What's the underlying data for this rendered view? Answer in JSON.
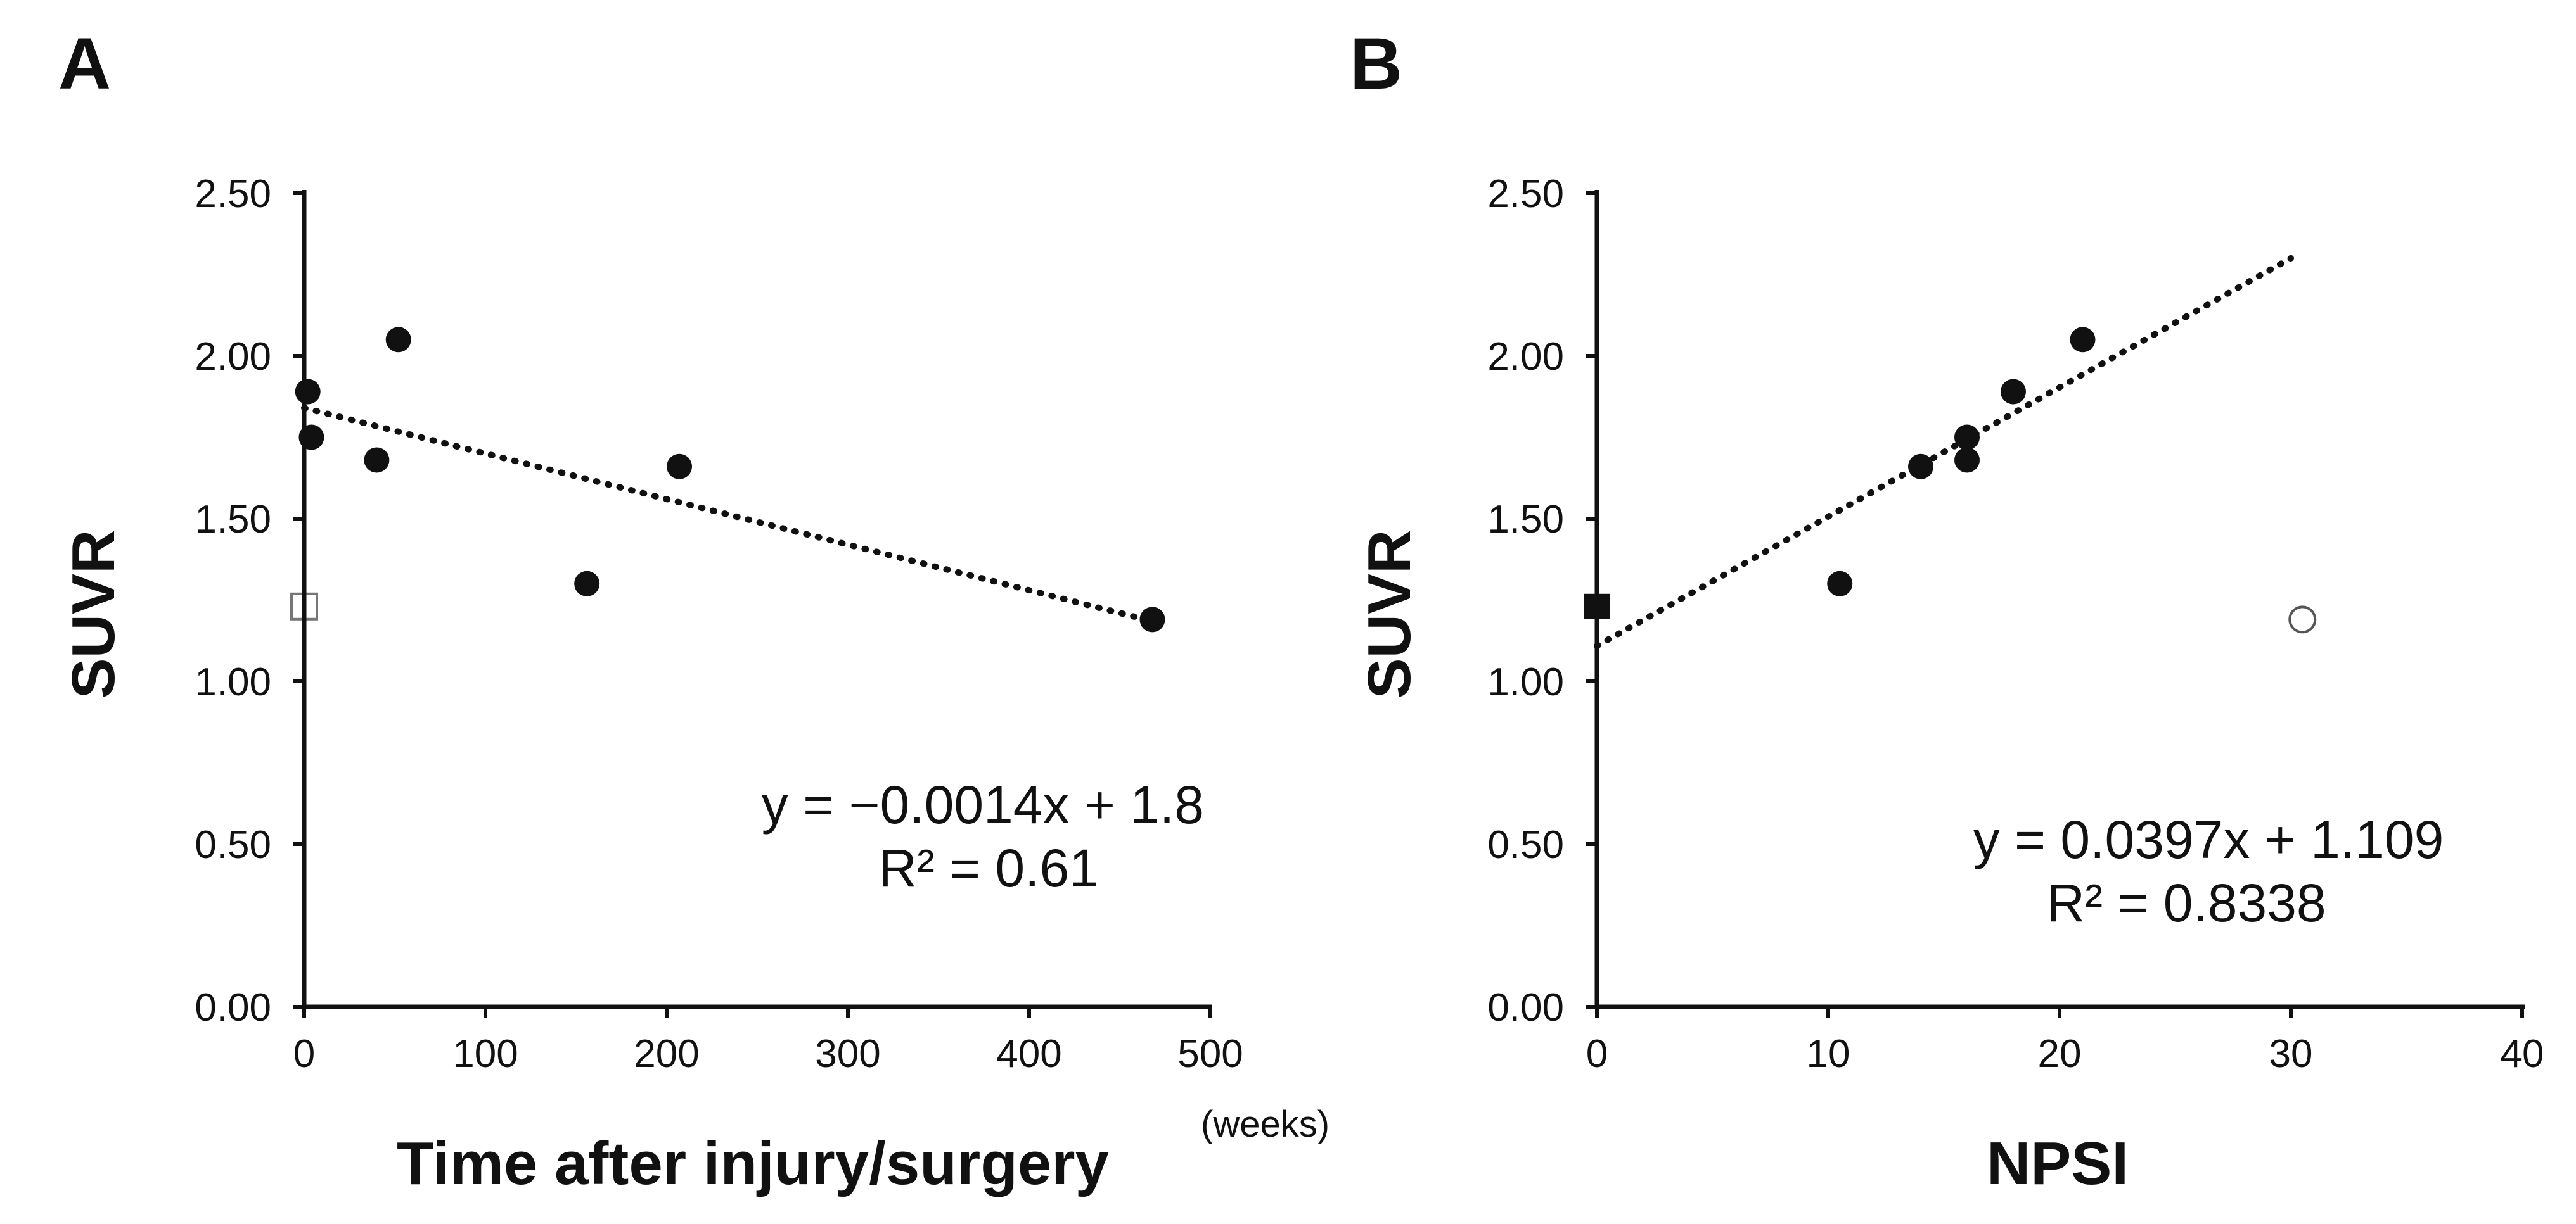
{
  "chart_data": [
    {
      "type": "scatter",
      "panel_label": "A",
      "title": "",
      "xlabel": "Time after injury/surgery",
      "xlabel_unit": "(weeks)",
      "ylabel": "SUVR",
      "xlim": [
        0,
        500
      ],
      "ylim": [
        0,
        2.5
      ],
      "x_ticks": [
        "0",
        "100",
        "200",
        "300",
        "400",
        "500"
      ],
      "y_ticks": [
        "0.00",
        "0.50",
        "1.00",
        "1.50",
        "2.00",
        "2.50"
      ],
      "series": [
        {
          "name": "filled circles",
          "marker": "circle-filled",
          "points": [
            [
              2,
              1.89
            ],
            [
              4,
              1.75
            ],
            [
              40,
              1.68
            ],
            [
              52,
              2.05
            ],
            [
              156,
              1.3
            ],
            [
              207,
              1.66
            ],
            [
              468,
              1.19
            ]
          ]
        },
        {
          "name": "open square",
          "marker": "square-open",
          "points": [
            [
              0,
              1.23
            ]
          ]
        }
      ],
      "trendline": {
        "x_range": [
          0,
          468
        ],
        "slope": -0.0014,
        "intercept": 1.84
      },
      "equation": "y = −0.0014x + 1.8",
      "r_squared": "R² = 0.61"
    },
    {
      "type": "scatter",
      "panel_label": "B",
      "title": "",
      "xlabel": "NPSI",
      "ylabel": "SUVR",
      "xlim": [
        0,
        40
      ],
      "ylim": [
        0,
        2.5
      ],
      "x_ticks": [
        "0",
        "10",
        "20",
        "30",
        "40"
      ],
      "y_ticks": [
        "0.00",
        "0.50",
        "1.00",
        "1.50",
        "2.00",
        "2.50"
      ],
      "series": [
        {
          "name": "filled circles",
          "marker": "circle-filled",
          "points": [
            [
              10.5,
              1.3
            ],
            [
              14,
              1.66
            ],
            [
              16,
              1.75
            ],
            [
              16,
              1.68
            ],
            [
              18,
              1.89
            ],
            [
              21,
              2.05
            ]
          ]
        },
        {
          "name": "filled square",
          "marker": "square-filled",
          "points": [
            [
              0,
              1.23
            ]
          ]
        },
        {
          "name": "open circle",
          "marker": "circle-open",
          "points": [
            [
              30.5,
              1.19
            ]
          ]
        }
      ],
      "trendline": {
        "x_range": [
          0,
          30
        ],
        "slope": 0.0397,
        "intercept": 1.109
      },
      "equation": "y = 0.0397x + 1.109",
      "r_squared": "R² = 0.8338"
    }
  ]
}
